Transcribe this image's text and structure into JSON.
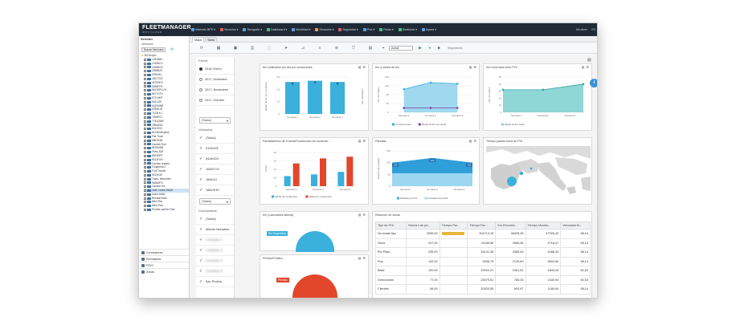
{
  "app": {
    "logo": "FLEETMANAGER",
    "logo_sub": "MOVILIZER"
  },
  "nav": [
    {
      "label": "Informes BPS",
      "color": "#5da1e0"
    },
    {
      "label": "Servicios",
      "color": "#e85c5c"
    },
    {
      "label": "Tacógrafo",
      "color": "#5da1e0"
    },
    {
      "label": "Dashboard",
      "color": "#4bbf7a"
    },
    {
      "label": "Movilidad",
      "color": "#5da1e0"
    },
    {
      "label": "Sensores",
      "color": "#e8a04a"
    },
    {
      "label": "Seguridad",
      "color": "#e85c5c"
    },
    {
      "label": "Plus",
      "color": "#5da1e0"
    },
    {
      "label": "Rutas",
      "color": "#4bbf7a"
    },
    {
      "label": "Gestionar",
      "color": "#4bbf7a"
    },
    {
      "label": "Ayuda",
      "color": "#5da1e0"
    }
  ],
  "user": {
    "name": "Movilizer",
    "extra": "ES"
  },
  "tabs": [
    "Mapa",
    "Tabla"
  ],
  "toolbar": {
    "input_value": "Actual",
    "status_text": "Seguimiento"
  },
  "sidebar": {
    "title": "Selector",
    "vehicles_label": "Vehículos",
    "search_btn": "Buscar Vehículos",
    "group": "Mi Grupo",
    "items": [
      "1234ABC",
      "1782BCV",
      "2345BCD",
      "2368BZX",
      "3765JKL",
      "4321TXG",
      "4570DFG",
      "5498FFH",
      "5612RPLUS",
      "5677GTH",
      "5731JKP",
      "6021JJK",
      "6432MNB",
      "6789KJH",
      "7123LKJ",
      "7456POI",
      "7781QWE",
      "7890ASD",
      "8012ZXC",
      "8123Enterprise",
      "Fiat Truck",
      "6567KAB",
      "Camión Test",
      "8876MNB",
      "Flota_SAT",
      "8923DRT",
      "9012FGH",
      "Camión reparto",
      "Furgoneta 2",
      "Ford Transit",
      "9123HJK",
      "Trans. Mercedes",
      "9456DFG",
      "Camión frío",
      "Juan Carlos Moral",
      "Volvo trailer",
      "Renault Moto",
      "Mind Rat",
      "Mind Part",
      "Prueba camión Fast"
    ],
    "bottom": [
      {
        "label": "Conductores"
      },
      {
        "label": "Remolques"
      },
      {
        "label": "POIS"
      },
      {
        "label": "Zonas"
      }
    ]
  },
  "filter": {
    "fecha_label": "Fecha",
    "fechas": [
      {
        "label": "2018, Enero",
        "selected": true
      },
      {
        "label": "2017, Diciembre",
        "selected": false
      },
      {
        "label": "2017, Noviembre",
        "selected": false
      },
      {
        "label": "2017, Octubre",
        "selected": false
      }
    ],
    "select1": "(Todos)",
    "vehiculos_label": "Vehículos",
    "vehiculos": [
      "(Todos)",
      "0104USF",
      "0444KDV",
      "1645CCH",
      "1656JJJ",
      "1681HHH"
    ],
    "select2": "(Todos)",
    "conductores_label": "Conductores",
    "conductores": [
      "(Todos)",
      "Alberto Monsalve",
      "Conductor 2",
      "Conductor 3",
      "Conductor 4",
      "Conductor 5",
      "Azu Prueba"
    ]
  },
  "panels": {
    "p1_title": "Km realizados por día por conductores",
    "p2_title": "Km y media de km",
    "p3_title": "Km recorridos entre POI",
    "p4_title": "Paradas/inicio de 8 horas/Conducción de conducto...",
    "p5_title": "Paradas",
    "p6_title": "Tiempo parado fuera de POI",
    "p7_title": "Km (Laborables laboral)",
    "p8_title": "Privado/Público",
    "p9_title": "Resumen de zonas"
  },
  "chart_data": [
    {
      "type": "bar",
      "title": "Km realizados por día por conductores",
      "categories": [
        "Semana 1",
        "Semana 2",
        "Semana 3"
      ],
      "series": [
        {
          "values": [
            26,
            27,
            26
          ]
        }
      ],
      "ylabel": "Media de km por conductor",
      "ylabel2": "Km realizados",
      "ylim": [
        0,
        30
      ]
    },
    {
      "type": "area",
      "title": "Km y media de km",
      "categories": [
        "Semana 1",
        "Semana 2",
        "Semana 3"
      ],
      "series": [
        {
          "name": "Km Recorridos",
          "values": [
            105,
            135,
            130
          ]
        },
        {
          "name": "Media de km por fecha",
          "values": [
            20,
            20,
            20
          ]
        }
      ],
      "ylabel": "Km recorridos",
      "ylim": [
        0,
        160
      ]
    },
    {
      "type": "area",
      "title": "Km recorridos entre POI",
      "categories": [
        "Semana 1",
        "Semana 2",
        "Semana 3"
      ],
      "series": [
        {
          "name": "Media de km fuera",
          "values": [
            32,
            32,
            40
          ]
        }
      ],
      "ylabel": "Km recorridos",
      "ylim": [
        0,
        50
      ]
    },
    {
      "type": "bar",
      "title": "Paradas/inicio de 8 horas/Conducción de conducto...",
      "categories": [
        "Semana 1",
        "Semana 2",
        "Semana 3"
      ],
      "series": [
        {
          "name": "Media de conducción",
          "values": [
            12,
            14,
            17
          ]
        },
        {
          "name": "Media de conducción",
          "values": [
            27,
            33,
            35
          ]
        }
      ],
      "ylabel": "Horas",
      "ylim": [
        0,
        40
      ]
    },
    {
      "type": "area",
      "title": "Paradas",
      "categories": [
        "Semana 1",
        "Semana 2",
        "Semana 3"
      ],
      "series": [
        {
          "name": "Paradas en POI",
          "values": [
            100,
            120,
            100
          ]
        },
        {
          "name": "Paradas fuera POI",
          "values": [
            55,
            55,
            55
          ]
        }
      ],
      "labels": [
        "100",
        "120",
        "100"
      ],
      "ylabel": "Número de paradas",
      "ylim": [
        0,
        150
      ]
    }
  ],
  "zones": {
    "headers": [
      "Tipo de POI",
      "Número de pa...",
      "Tiempo Par...",
      "Tiempo Par...",
      "Km Recorrid...",
      "Tiempo Movido...",
      "Velocidad M..."
    ],
    "rows": [
      {
        "tipo": "No existe tipo",
        "num": "2065,00",
        "bar": 0.95,
        "t": "304714,15",
        "km": "46426,26",
        "mov": "47909,43",
        "vel": "58,14"
      },
      {
        "tipo": "Otros",
        "num": "247,00",
        "bar": 0.0,
        "t": "41185,56",
        "km": "2565,48",
        "mov": "4718,47",
        "vel": "58,14"
      },
      {
        "tipo": "Pto Paso",
        "num": "235,00",
        "bar": 0.0,
        "t": "34101,38",
        "km": "2389,63",
        "mov": "4286,34",
        "vel": "58,14"
      },
      {
        "tipo": "Pus",
        "num": "142,00",
        "bar": 0.0,
        "t": "5938,78",
        "km": "2120,60",
        "mov": "3604,96",
        "vel": "58,14"
      },
      {
        "tipo": "Base",
        "num": "120,00",
        "bar": 0.0,
        "t": "22520,21",
        "km": "1061,52",
        "mov": "1843,34",
        "vel": "60,53"
      },
      {
        "tipo": "Direcciones",
        "num": "77,00",
        "bar": 0.0,
        "t": "23079,61",
        "km": "783,03",
        "mov": "1330,94",
        "vel": "60,53"
      },
      {
        "tipo": "Clientes",
        "num": "58,00",
        "bar": 0.0,
        "t": "20520,55",
        "km": "692,67",
        "mov": "1180,94",
        "vel": "58,14"
      }
    ]
  },
  "pies": {
    "label1": "Sin Especificar",
    "label2": "Privado"
  }
}
